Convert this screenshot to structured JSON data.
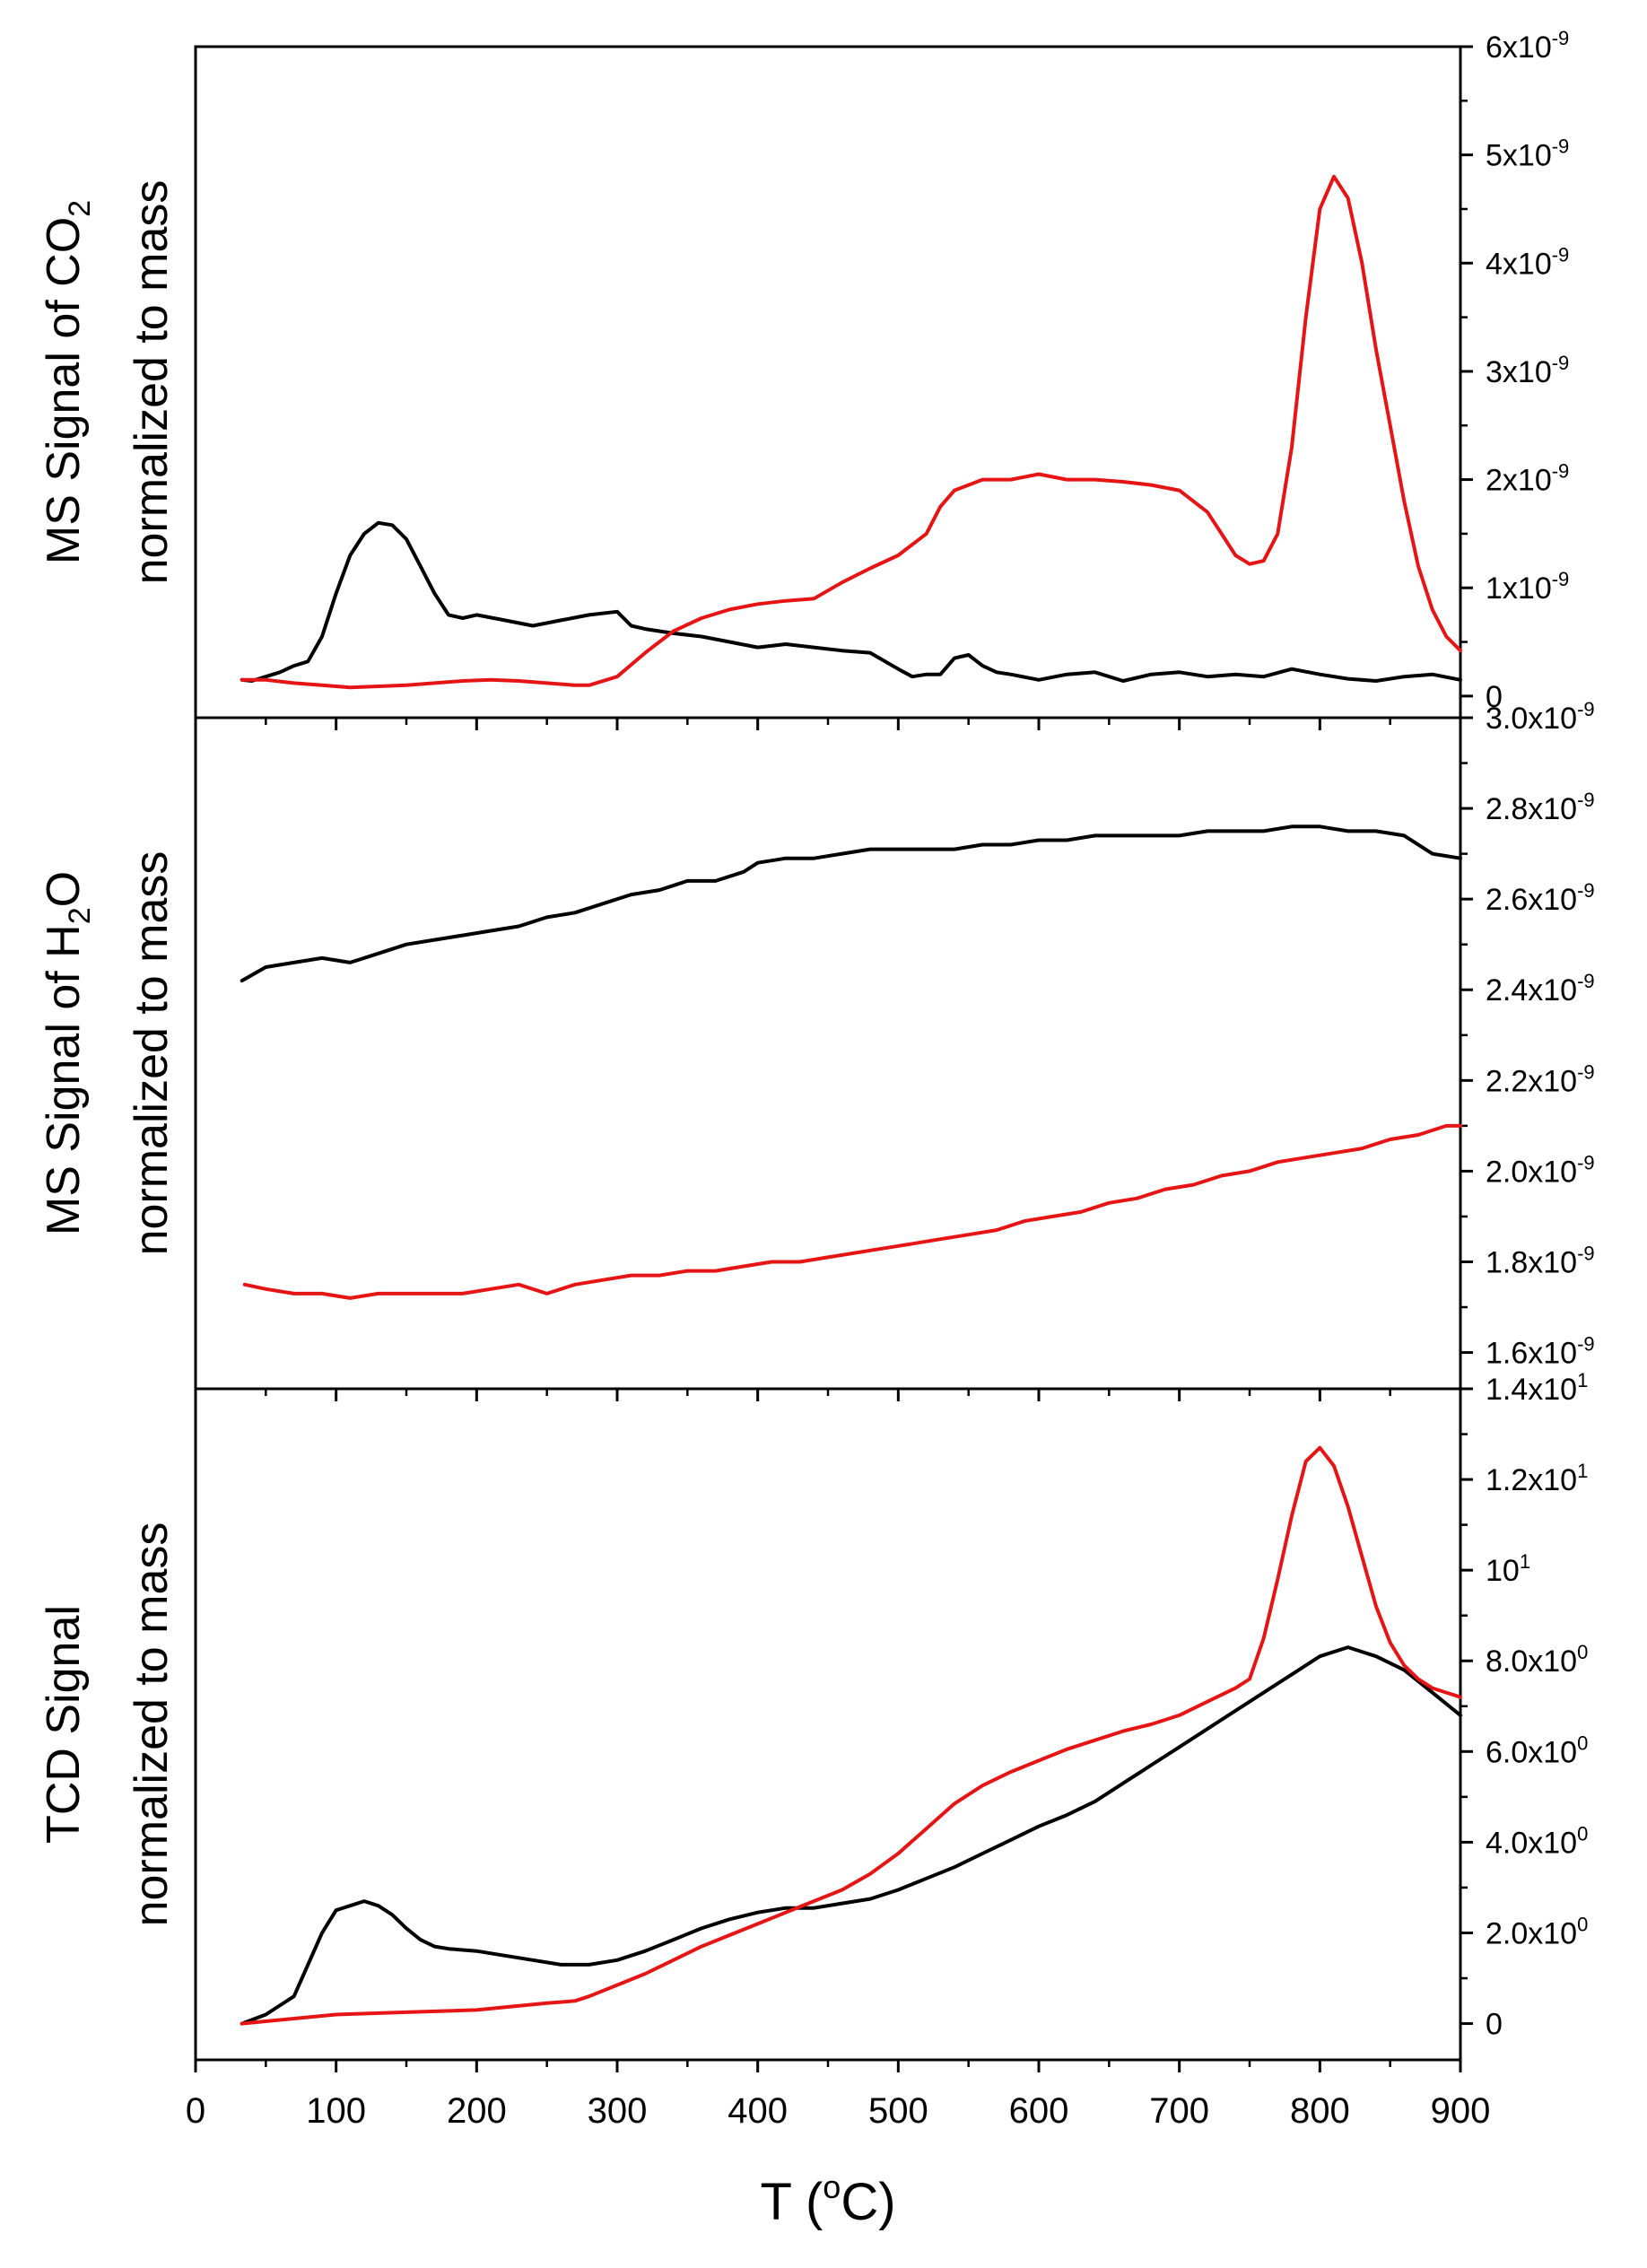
{
  "chart_data": [
    {
      "type": "line",
      "ylabel_line1": "MS Signal of CO",
      "ylabel_sub": "2",
      "ylabel_line2": "normalized to mass",
      "ylim": [
        -0.2,
        6.0
      ],
      "xlim": [
        0,
        900
      ],
      "yticks": [
        {
          "v": 6,
          "base": "6x10",
          "exp": "-9"
        },
        {
          "v": 5,
          "base": "5x10",
          "exp": "-9"
        },
        {
          "v": 4,
          "base": "4x10",
          "exp": "-9"
        },
        {
          "v": 3,
          "base": "3x10",
          "exp": "-9"
        },
        {
          "v": 2,
          "base": "2x10",
          "exp": "-9"
        },
        {
          "v": 1,
          "base": "1x10",
          "exp": "-9"
        },
        {
          "v": 0,
          "base": "0",
          "exp": ""
        }
      ],
      "series": [
        {
          "color": "#000000",
          "x": [
            33,
            40,
            50,
            60,
            70,
            80,
            90,
            100,
            110,
            120,
            130,
            140,
            150,
            160,
            170,
            180,
            190,
            200,
            220,
            240,
            260,
            280,
            300,
            310,
            320,
            340,
            360,
            380,
            400,
            420,
            440,
            460,
            480,
            500,
            510,
            520,
            530,
            540,
            550,
            560,
            570,
            580,
            600,
            620,
            640,
            660,
            680,
            700,
            720,
            740,
            760,
            780,
            800,
            820,
            840,
            860,
            880,
            900
          ],
          "values": [
            0.15,
            0.14,
            0.18,
            0.22,
            0.28,
            0.32,
            0.55,
            0.95,
            1.3,
            1.5,
            1.6,
            1.58,
            1.45,
            1.2,
            0.95,
            0.75,
            0.72,
            0.75,
            0.7,
            0.65,
            0.7,
            0.75,
            0.78,
            0.65,
            0.62,
            0.58,
            0.55,
            0.5,
            0.45,
            0.48,
            0.45,
            0.42,
            0.4,
            0.25,
            0.18,
            0.2,
            0.2,
            0.35,
            0.38,
            0.28,
            0.22,
            0.2,
            0.15,
            0.2,
            0.22,
            0.14,
            0.2,
            0.22,
            0.18,
            0.2,
            0.18,
            0.25,
            0.2,
            0.16,
            0.14,
            0.18,
            0.2,
            0.15
          ]
        },
        {
          "color": "#e51515",
          "x": [
            33,
            50,
            70,
            90,
            110,
            130,
            150,
            170,
            190,
            210,
            230,
            250,
            270,
            280,
            300,
            320,
            340,
            360,
            380,
            400,
            420,
            440,
            460,
            480,
            500,
            520,
            530,
            540,
            550,
            560,
            580,
            600,
            620,
            640,
            660,
            680,
            700,
            720,
            730,
            740,
            750,
            760,
            770,
            780,
            790,
            800,
            810,
            820,
            830,
            840,
            850,
            860,
            870,
            880,
            890,
            900
          ],
          "values": [
            0.15,
            0.15,
            0.12,
            0.1,
            0.08,
            0.09,
            0.1,
            0.12,
            0.14,
            0.15,
            0.14,
            0.12,
            0.1,
            0.1,
            0.18,
            0.4,
            0.6,
            0.72,
            0.8,
            0.85,
            0.88,
            0.9,
            1.05,
            1.18,
            1.3,
            1.5,
            1.75,
            1.9,
            1.95,
            2.0,
            2.0,
            2.05,
            2.0,
            2.0,
            1.98,
            1.95,
            1.9,
            1.7,
            1.5,
            1.3,
            1.22,
            1.25,
            1.5,
            2.3,
            3.5,
            4.5,
            4.8,
            4.6,
            4.0,
            3.2,
            2.5,
            1.8,
            1.2,
            0.8,
            0.55,
            0.42
          ]
        }
      ]
    },
    {
      "type": "line",
      "ylabel_line1": "MS Signal of H",
      "ylabel_sub": "2",
      "ylabel_line1_suffix": "O",
      "ylabel_line2": "normalized to mass",
      "ylim": [
        1.52,
        3.0
      ],
      "xlim": [
        0,
        900
      ],
      "yticks": [
        {
          "v": 3.0,
          "base": "3.0x10",
          "exp": "-9"
        },
        {
          "v": 2.8,
          "base": "2.8x10",
          "exp": "-9"
        },
        {
          "v": 2.6,
          "base": "2.6x10",
          "exp": "-9"
        },
        {
          "v": 2.4,
          "base": "2.4x10",
          "exp": "-9"
        },
        {
          "v": 2.2,
          "base": "2.2x10",
          "exp": "-9"
        },
        {
          "v": 2.0,
          "base": "2.0x10",
          "exp": "-9"
        },
        {
          "v": 1.8,
          "base": "1.8x10",
          "exp": "-9"
        },
        {
          "v": 1.6,
          "base": "1.6x10",
          "exp": "-9"
        }
      ],
      "series": [
        {
          "color": "#000000",
          "x": [
            33,
            50,
            70,
            90,
            110,
            130,
            150,
            170,
            190,
            210,
            230,
            250,
            270,
            290,
            310,
            330,
            350,
            370,
            390,
            400,
            420,
            440,
            460,
            480,
            500,
            520,
            540,
            560,
            580,
            600,
            620,
            640,
            660,
            680,
            700,
            720,
            740,
            760,
            780,
            800,
            820,
            840,
            860,
            880,
            900
          ],
          "values": [
            2.42,
            2.45,
            2.46,
            2.47,
            2.46,
            2.48,
            2.5,
            2.51,
            2.52,
            2.53,
            2.54,
            2.56,
            2.57,
            2.59,
            2.61,
            2.62,
            2.64,
            2.64,
            2.66,
            2.68,
            2.69,
            2.69,
            2.7,
            2.71,
            2.71,
            2.71,
            2.71,
            2.72,
            2.72,
            2.73,
            2.73,
            2.74,
            2.74,
            2.74,
            2.74,
            2.75,
            2.75,
            2.75,
            2.76,
            2.76,
            2.75,
            2.75,
            2.74,
            2.7,
            2.69
          ]
        },
        {
          "color": "#e51515",
          "x": [
            35,
            50,
            70,
            90,
            110,
            130,
            150,
            170,
            190,
            210,
            230,
            250,
            270,
            290,
            310,
            330,
            350,
            370,
            390,
            410,
            430,
            450,
            470,
            490,
            510,
            530,
            550,
            570,
            590,
            610,
            630,
            650,
            670,
            690,
            710,
            730,
            750,
            770,
            790,
            810,
            830,
            850,
            870,
            890,
            900
          ],
          "values": [
            1.75,
            1.74,
            1.73,
            1.73,
            1.72,
            1.73,
            1.73,
            1.73,
            1.73,
            1.74,
            1.75,
            1.73,
            1.75,
            1.76,
            1.77,
            1.77,
            1.78,
            1.78,
            1.79,
            1.8,
            1.8,
            1.81,
            1.82,
            1.83,
            1.84,
            1.85,
            1.86,
            1.87,
            1.89,
            1.9,
            1.91,
            1.93,
            1.94,
            1.96,
            1.97,
            1.99,
            2.0,
            2.02,
            2.03,
            2.04,
            2.05,
            2.07,
            2.08,
            2.1,
            2.1
          ]
        }
      ]
    },
    {
      "type": "line",
      "ylabel_line1": "TCD Signal",
      "ylabel_line2": "normalized to mass",
      "xlabel_base": "T (",
      "xlabel_sup": "o",
      "xlabel_end": "C)",
      "ylim": [
        -0.8,
        14.0
      ],
      "xlim": [
        0,
        900
      ],
      "xticks": [
        0,
        100,
        200,
        300,
        400,
        500,
        600,
        700,
        800,
        900
      ],
      "yticks": [
        {
          "v": 14,
          "base": "1.4x10",
          "exp": "1"
        },
        {
          "v": 12,
          "base": "1.2x10",
          "exp": "1"
        },
        {
          "v": 10,
          "base": "10",
          "exp": "1"
        },
        {
          "v": 8,
          "base": "8.0x10",
          "exp": "0"
        },
        {
          "v": 6,
          "base": "6.0x10",
          "exp": "0"
        },
        {
          "v": 4,
          "base": "4.0x10",
          "exp": "0"
        },
        {
          "v": 2,
          "base": "2.0x10",
          "exp": "0"
        },
        {
          "v": 0,
          "base": "0",
          "exp": ""
        }
      ],
      "series": [
        {
          "color": "#000000",
          "x": [
            33,
            50,
            70,
            80,
            90,
            100,
            110,
            120,
            130,
            140,
            150,
            160,
            170,
            180,
            200,
            220,
            240,
            260,
            280,
            300,
            320,
            340,
            360,
            380,
            400,
            420,
            440,
            460,
            480,
            500,
            520,
            540,
            560,
            580,
            600,
            620,
            640,
            660,
            680,
            700,
            720,
            740,
            760,
            780,
            800,
            820,
            840,
            860,
            880,
            900
          ],
          "values": [
            0.0,
            0.2,
            0.6,
            1.3,
            2.0,
            2.5,
            2.6,
            2.7,
            2.6,
            2.4,
            2.1,
            1.85,
            1.7,
            1.65,
            1.6,
            1.5,
            1.4,
            1.3,
            1.3,
            1.4,
            1.6,
            1.85,
            2.1,
            2.3,
            2.45,
            2.55,
            2.55,
            2.65,
            2.75,
            2.95,
            3.2,
            3.45,
            3.75,
            4.05,
            4.35,
            4.6,
            4.9,
            5.3,
            5.7,
            6.1,
            6.5,
            6.9,
            7.3,
            7.7,
            8.1,
            8.3,
            8.1,
            7.8,
            7.3,
            6.8
          ]
        },
        {
          "color": "#e51515",
          "x": [
            33,
            50,
            100,
            150,
            200,
            250,
            270,
            280,
            300,
            320,
            340,
            360,
            380,
            400,
            420,
            440,
            460,
            480,
            500,
            520,
            540,
            560,
            580,
            600,
            620,
            640,
            660,
            680,
            700,
            720,
            740,
            750,
            760,
            770,
            780,
            790,
            800,
            810,
            820,
            830,
            840,
            850,
            860,
            870,
            880,
            890,
            900
          ],
          "values": [
            0.0,
            0.05,
            0.2,
            0.25,
            0.3,
            0.45,
            0.5,
            0.6,
            0.85,
            1.1,
            1.4,
            1.7,
            1.95,
            2.2,
            2.45,
            2.7,
            2.95,
            3.3,
            3.75,
            4.3,
            4.85,
            5.25,
            5.55,
            5.8,
            6.05,
            6.25,
            6.45,
            6.6,
            6.8,
            7.1,
            7.4,
            7.6,
            8.5,
            9.8,
            11.2,
            12.4,
            12.7,
            12.3,
            11.4,
            10.3,
            9.2,
            8.4,
            7.9,
            7.6,
            7.4,
            7.3,
            7.2
          ]
        }
      ]
    }
  ]
}
